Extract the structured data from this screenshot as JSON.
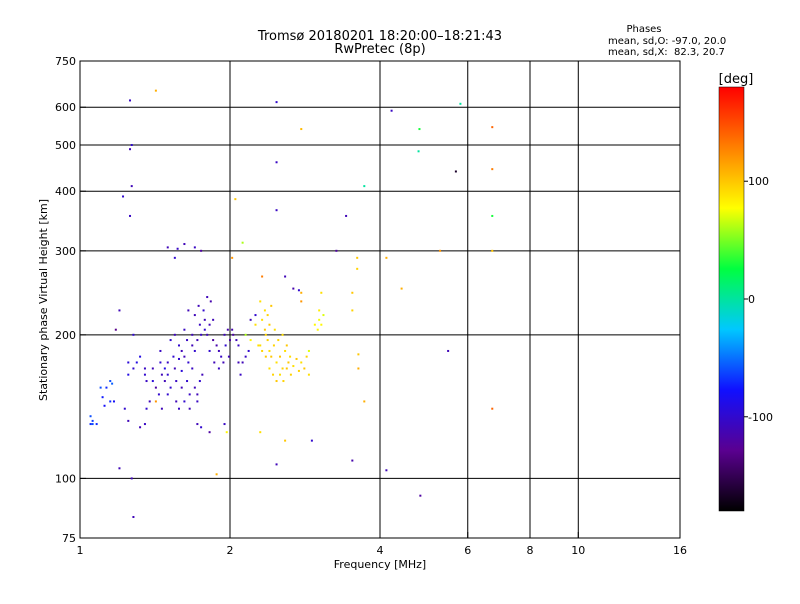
{
  "chart_data": {
    "type": "scatter",
    "title": "Tromsø 20180201 18:20:00–18:21:43",
    "subtitle": "RwPretec (8p)",
    "xlabel": "Frequency [MHz]",
    "ylabel": "Stationary phase Virtual Height [km]",
    "x_scale": "log",
    "y_scale": "log",
    "xlim": [
      1,
      16
    ],
    "ylim": [
      75,
      750
    ],
    "x_ticks": [
      1,
      2,
      4,
      6,
      8,
      10,
      16
    ],
    "x_tick_labels": [
      "1",
      "2",
      "4",
      "6",
      "8",
      "10",
      "16"
    ],
    "x_grid": [
      2,
      4,
      6,
      8,
      10
    ],
    "y_ticks": [
      75,
      100,
      200,
      300,
      400,
      500,
      600,
      750
    ],
    "y_tick_labels": [
      "75",
      "100",
      "200",
      "300",
      "400",
      "500",
      "600",
      "750"
    ],
    "y_grid": [
      100,
      200,
      300,
      400,
      500,
      600
    ],
    "grid": true,
    "phases_info": {
      "heading": "Phases",
      "line_o": "mean, sd,O: -97.0, 20.0",
      "line_x": "mean, sd,X:  82.3, 20.7"
    },
    "colorbar": {
      "title": "[deg]",
      "range": [
        -180,
        180
      ],
      "ticks": [
        100,
        0,
        -100
      ],
      "tick_labels": [
        "100",
        "0",
        "-100"
      ],
      "palette": [
        "#000000",
        "#5a0090",
        "#1010ff",
        "#00c8ff",
        "#00ff40",
        "#ffff00",
        "#ff8000",
        "#ff0000"
      ]
    },
    "points": [
      [
        1.26,
        620,
        -105
      ],
      [
        1.42,
        650,
        110
      ],
      [
        2.48,
        615,
        -100
      ],
      [
        2.78,
        540,
        105
      ],
      [
        1.27,
        500,
        -100
      ],
      [
        1.26,
        490,
        -110
      ],
      [
        1.27,
        410,
        -110
      ],
      [
        1.22,
        390,
        -100
      ],
      [
        1.26,
        355,
        -105
      ],
      [
        2.48,
        460,
        -105
      ],
      [
        2.48,
        365,
        -105
      ],
      [
        2.05,
        385,
        100
      ],
      [
        2.12,
        312,
        60
      ],
      [
        3.72,
        410,
        0
      ],
      [
        3.42,
        355,
        -110
      ],
      [
        3.27,
        300,
        -120
      ],
      [
        4.22,
        590,
        -105
      ],
      [
        4.8,
        540,
        30
      ],
      [
        5.8,
        610,
        0
      ],
      [
        6.72,
        545,
        140
      ],
      [
        4.78,
        485,
        0
      ],
      [
        5.68,
        440,
        -165
      ],
      [
        6.72,
        445,
        130
      ],
      [
        6.72,
        355,
        30
      ],
      [
        5.28,
        300,
        120
      ],
      [
        6.72,
        300,
        100
      ],
      [
        4.12,
        290,
        110
      ],
      [
        4.42,
        250,
        110
      ],
      [
        3.6,
        290,
        100
      ],
      [
        3.6,
        275,
        95
      ],
      [
        3.52,
        245,
        100
      ],
      [
        3.52,
        225,
        95
      ],
      [
        1.5,
        305,
        -110
      ],
      [
        1.57,
        303,
        -105
      ],
      [
        1.62,
        310,
        -110
      ],
      [
        1.7,
        305,
        -105
      ],
      [
        1.55,
        290,
        -100
      ],
      [
        1.75,
        300,
        -120
      ],
      [
        1.2,
        225,
        -110
      ],
      [
        2.02,
        290,
        120
      ],
      [
        2.32,
        265,
        130
      ],
      [
        2.58,
        265,
        -110
      ],
      [
        2.68,
        250,
        -115
      ],
      [
        2.78,
        245,
        110
      ],
      [
        2.78,
        235,
        120
      ],
      [
        3.05,
        245,
        90
      ],
      [
        2.75,
        248,
        -100
      ],
      [
        2.88,
        185,
        70
      ],
      [
        5.48,
        185,
        -110
      ],
      [
        3.62,
        182,
        100
      ],
      [
        3.62,
        170,
        110
      ],
      [
        3.72,
        145,
        110
      ],
      [
        6.72,
        140,
        140
      ],
      [
        1.18,
        205,
        -130
      ],
      [
        1.28,
        200,
        -100
      ],
      [
        2.02,
        205,
        -115
      ],
      [
        1.72,
        130,
        -110
      ],
      [
        1.75,
        128,
        -100
      ],
      [
        1.82,
        125,
        -120
      ],
      [
        1.95,
        130,
        -105
      ],
      [
        1.97,
        125,
        80
      ],
      [
        2.3,
        125,
        90
      ],
      [
        2.58,
        120,
        100
      ],
      [
        2.92,
        120,
        -100
      ],
      [
        1.88,
        102,
        110
      ],
      [
        2.48,
        107,
        -110
      ],
      [
        3.52,
        109,
        -115
      ],
      [
        4.12,
        104,
        -110
      ],
      [
        1.2,
        105,
        -110
      ],
      [
        1.27,
        100,
        -110
      ],
      [
        1.28,
        83,
        -110
      ],
      [
        4.82,
        92,
        -120
      ],
      [
        1.42,
        145,
        120
      ],
      [
        1.35,
        130,
        -105
      ],
      [
        1.32,
        128,
        -110
      ],
      [
        1.25,
        132,
        -110
      ],
      [
        1.23,
        140,
        -100
      ],
      [
        1.36,
        140,
        -100
      ],
      [
        1.38,
        145,
        -110
      ],
      [
        1.12,
        142,
        -80
      ],
      [
        1.11,
        148,
        -75
      ],
      [
        1.15,
        145,
        -70
      ],
      [
        1.17,
        145,
        -80
      ],
      [
        1.1,
        155,
        -60
      ],
      [
        1.13,
        155,
        -70
      ],
      [
        1.15,
        160,
        -60
      ],
      [
        1.16,
        158,
        -55
      ],
      [
        1.05,
        135,
        -60
      ],
      [
        1.06,
        132,
        -65
      ],
      [
        1.08,
        130,
        -70
      ],
      [
        1.06,
        130,
        -60
      ],
      [
        1.05,
        130,
        -70
      ],
      [
        1.25,
        165,
        -90
      ],
      [
        1.28,
        170,
        -100
      ],
      [
        1.3,
        175,
        -90
      ],
      [
        1.32,
        180,
        -90
      ],
      [
        1.25,
        175,
        -95
      ],
      [
        1.35,
        165,
        -100
      ],
      [
        1.35,
        170,
        -105
      ],
      [
        1.45,
        175,
        -100
      ],
      [
        1.4,
        160,
        -95
      ],
      [
        1.45,
        185,
        -105
      ],
      [
        1.48,
        170,
        -90
      ],
      [
        1.5,
        175,
        -105
      ],
      [
        1.5,
        165,
        -100
      ],
      [
        1.55,
        170,
        -110
      ],
      [
        1.58,
        178,
        -100
      ],
      [
        1.6,
        168,
        -95
      ],
      [
        1.62,
        180,
        -110
      ],
      [
        1.65,
        175,
        -100
      ],
      [
        1.68,
        170,
        -105
      ],
      [
        1.68,
        190,
        -110
      ],
      [
        1.7,
        185,
        -100
      ],
      [
        1.72,
        195,
        -110
      ],
      [
        1.75,
        200,
        -105
      ],
      [
        1.78,
        205,
        -100
      ],
      [
        1.8,
        200,
        -110
      ],
      [
        1.82,
        210,
        -110
      ],
      [
        1.85,
        195,
        -120
      ],
      [
        1.88,
        190,
        -115
      ],
      [
        1.9,
        185,
        -110
      ],
      [
        1.92,
        180,
        -105
      ],
      [
        1.95,
        200,
        -110
      ],
      [
        1.98,
        205,
        -115
      ],
      [
        2.0,
        195,
        -120
      ],
      [
        1.7,
        220,
        -110
      ],
      [
        1.73,
        230,
        -110
      ],
      [
        1.77,
        225,
        -100
      ],
      [
        1.8,
        240,
        -110
      ],
      [
        1.83,
        235,
        -115
      ],
      [
        1.85,
        215,
        -110
      ],
      [
        1.65,
        225,
        -110
      ],
      [
        1.62,
        205,
        -105
      ],
      [
        1.58,
        190,
        -100
      ],
      [
        1.55,
        200,
        -110
      ],
      [
        1.52,
        195,
        -100
      ],
      [
        1.48,
        160,
        -110
      ],
      [
        1.52,
        155,
        -100
      ],
      [
        1.56,
        160,
        -105
      ],
      [
        1.6,
        155,
        -110
      ],
      [
        1.64,
        160,
        -100
      ],
      [
        1.66,
        150,
        -105
      ],
      [
        1.7,
        155,
        -110
      ],
      [
        1.74,
        160,
        -100
      ],
      [
        1.76,
        165,
        -110
      ],
      [
        1.72,
        150,
        -110
      ],
      [
        1.42,
        155,
        -120
      ],
      [
        1.4,
        170,
        -110
      ],
      [
        1.36,
        160,
        -105
      ],
      [
        1.44,
        150,
        -100
      ],
      [
        1.46,
        165,
        -110
      ],
      [
        1.54,
        180,
        -100
      ],
      [
        1.6,
        185,
        -110
      ],
      [
        1.64,
        195,
        -105
      ],
      [
        1.68,
        200,
        -110
      ],
      [
        1.74,
        210,
        -105
      ],
      [
        1.78,
        215,
        -110
      ],
      [
        1.82,
        185,
        -100
      ],
      [
        1.86,
        175,
        -110
      ],
      [
        1.9,
        170,
        -105
      ],
      [
        1.94,
        175,
        -110
      ],
      [
        1.96,
        190,
        -100
      ],
      [
        1.99,
        180,
        -110
      ],
      [
        2.03,
        200,
        -120
      ],
      [
        2.06,
        195,
        -110
      ],
      [
        2.08,
        190,
        -105
      ],
      [
        1.5,
        150,
        -100
      ],
      [
        1.56,
        145,
        -110
      ],
      [
        1.62,
        145,
        -100
      ],
      [
        1.58,
        140,
        -105
      ],
      [
        1.66,
        140,
        -110
      ],
      [
        1.72,
        145,
        -105
      ],
      [
        1.46,
        140,
        -110
      ],
      [
        2.15,
        200,
        60
      ],
      [
        2.2,
        195,
        80
      ],
      [
        2.25,
        210,
        90
      ],
      [
        2.32,
        215,
        90
      ],
      [
        2.35,
        205,
        100
      ],
      [
        2.38,
        195,
        95
      ],
      [
        2.4,
        185,
        90
      ],
      [
        2.42,
        180,
        100
      ],
      [
        2.45,
        190,
        95
      ],
      [
        2.48,
        175,
        90
      ],
      [
        2.52,
        180,
        100
      ],
      [
        2.55,
        170,
        95
      ],
      [
        2.58,
        185,
        90
      ],
      [
        2.62,
        175,
        100
      ],
      [
        2.65,
        165,
        95
      ],
      [
        2.68,
        172,
        90
      ],
      [
        2.72,
        178,
        100
      ],
      [
        2.75,
        168,
        95
      ],
      [
        2.78,
        175,
        90
      ],
      [
        2.82,
        170,
        100
      ],
      [
        2.35,
        225,
        90
      ],
      [
        2.38,
        220,
        95
      ],
      [
        2.42,
        230,
        100
      ],
      [
        2.3,
        235,
        90
      ],
      [
        2.36,
        200,
        95
      ],
      [
        2.4,
        210,
        100
      ],
      [
        2.46,
        205,
        90
      ],
      [
        2.5,
        195,
        95
      ],
      [
        2.55,
        200,
        90
      ],
      [
        2.6,
        190,
        100
      ],
      [
        2.28,
        190,
        90
      ],
      [
        2.32,
        185,
        95
      ],
      [
        2.36,
        180,
        100
      ],
      [
        2.4,
        170,
        90
      ],
      [
        2.44,
        165,
        95
      ],
      [
        2.48,
        160,
        100
      ],
      [
        2.52,
        165,
        90
      ],
      [
        2.56,
        160,
        95
      ],
      [
        2.6,
        170,
        100
      ],
      [
        2.64,
        180,
        90
      ],
      [
        3.0,
        205,
        80
      ],
      [
        3.02,
        215,
        75
      ],
      [
        3.05,
        210,
        80
      ],
      [
        3.08,
        220,
        70
      ],
      [
        3.02,
        225,
        85
      ],
      [
        2.96,
        210,
        80
      ],
      [
        2.12,
        175,
        -110
      ],
      [
        2.15,
        180,
        -105
      ],
      [
        2.18,
        185,
        -100
      ],
      [
        2.2,
        215,
        -110
      ],
      [
        2.25,
        220,
        -100
      ],
      [
        2.08,
        175,
        -110
      ],
      [
        2.1,
        165,
        -105
      ],
      [
        2.3,
        190,
        90
      ],
      [
        2.85,
        180,
        95
      ],
      [
        2.88,
        165,
        90
      ]
    ]
  }
}
